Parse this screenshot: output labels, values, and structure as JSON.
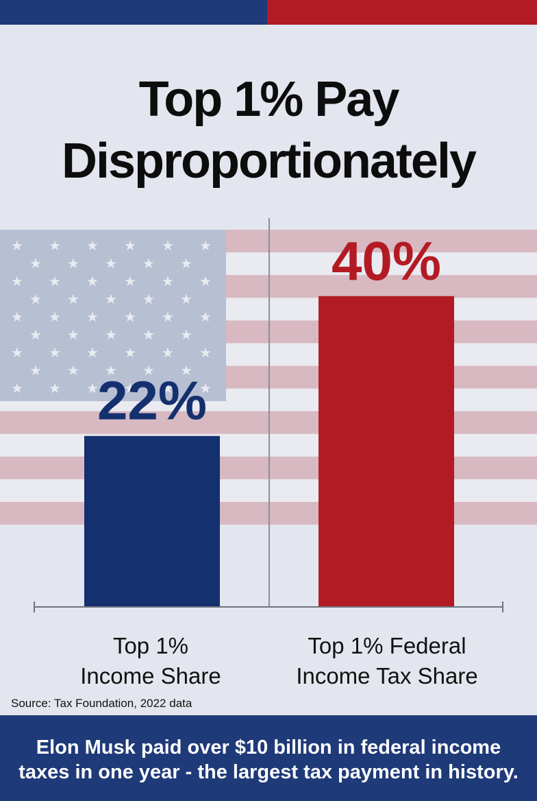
{
  "title_lines": [
    "Top 1% Pay",
    "Disproportionately"
  ],
  "colors": {
    "blue": "#1f3a78",
    "bar_blue": "#14306e",
    "red": "#b31b24"
  },
  "chart_data": {
    "type": "bar",
    "categories": [
      "Top 1%\nIncome Share",
      "Top 1% Federal\nIncome Tax Share"
    ],
    "values": [
      22,
      40
    ],
    "value_labels": [
      "22%",
      "40%"
    ],
    "unit": "%",
    "grid": false,
    "legend": "none"
  },
  "source": "Source: Tax Foundation, 2022 data",
  "footer": {
    "line1": "Elon Musk paid over $10 billion in federal income",
    "line2": "taxes in one year - the largest tax payment in history."
  }
}
